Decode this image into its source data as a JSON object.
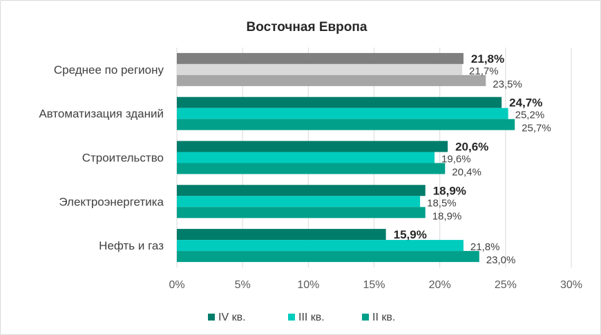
{
  "chart_data": {
    "type": "bar",
    "orientation": "horizontal",
    "title": "Восточная Европа",
    "categories": [
      "Среднее по региону",
      "Автоматизация зданий",
      "Строительство",
      "Электроэнергетика",
      "Нефть и газ"
    ],
    "series": [
      {
        "name": "IV кв.",
        "values": [
          21.8,
          24.7,
          20.6,
          18.9,
          15.9
        ],
        "labels": [
          "21,8%",
          "24,7%",
          "20,6%",
          "18,9%",
          "15,9%"
        ],
        "colors": [
          "#7f7f7f",
          "#007c6a",
          "#007c6a",
          "#007c6a",
          "#007c6a"
        ]
      },
      {
        "name": "III кв.",
        "values": [
          21.7,
          25.2,
          19.6,
          18.5,
          21.8
        ],
        "labels": [
          "21,7%",
          "25,2%",
          "19,6%",
          "18,5%",
          "21,8%"
        ],
        "colors": [
          "#d9d9d9",
          "#00ccbe",
          "#00ccbe",
          "#00ccbe",
          "#00ccbe"
        ]
      },
      {
        "name": "II кв.",
        "values": [
          23.5,
          25.7,
          20.4,
          18.9,
          23.0
        ],
        "labels": [
          "23,5%",
          "25,7%",
          "20,4%",
          "18,9%",
          "23,0%"
        ],
        "colors": [
          "#a6a6a6",
          "#00a08a",
          "#00a08a",
          "#00a08a",
          "#00a08a"
        ]
      }
    ],
    "x_ticks": [
      "0%",
      "5%",
      "10%",
      "15%",
      "20%",
      "25%",
      "30%"
    ],
    "xlim": [
      0,
      30
    ],
    "grid": "vertical",
    "legend_position": "bottom",
    "legend_colors": [
      "#007c6a",
      "#00ccbe",
      "#00a08a"
    ]
  }
}
